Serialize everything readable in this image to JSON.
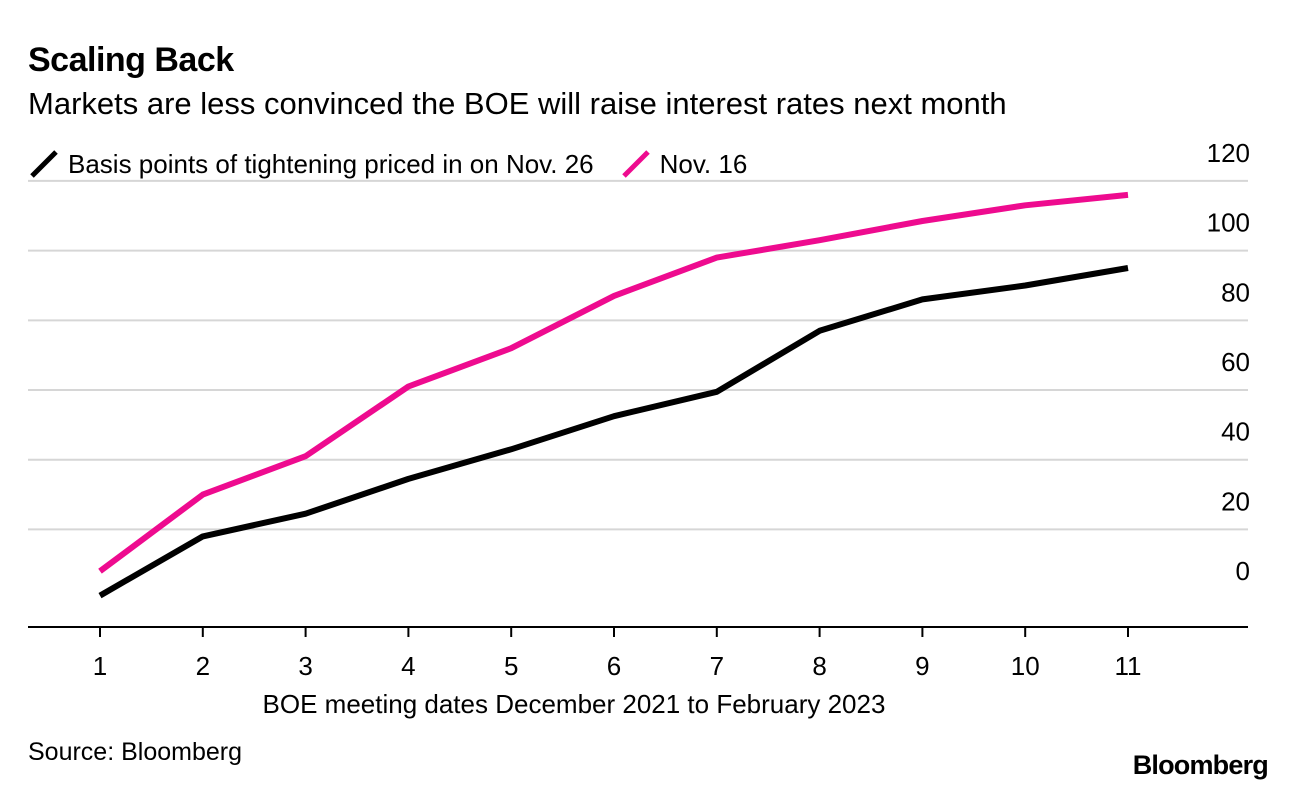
{
  "header": {
    "title": "Scaling Back",
    "subtitle": "Markets are less convinced the BOE will raise interest rates next month"
  },
  "footer": {
    "source": "Source: Bloomberg",
    "logo": "Bloomberg"
  },
  "colors": {
    "series_nov26": "#000000",
    "series_nov16": "#ee0b8f",
    "grid": "#d6d6d6",
    "axis": "#000000"
  },
  "chart_data": {
    "type": "line",
    "title": "Scaling Back",
    "subtitle": "Markets are less convinced the BOE will raise interest rates next month",
    "xlabel": "BOE meeting dates December 2021 to February 2023",
    "ylabel": "",
    "x": [
      1,
      2,
      3,
      4,
      5,
      6,
      7,
      8,
      9,
      10,
      11
    ],
    "x_tick_labels": [
      "1",
      "2",
      "3",
      "4",
      "5",
      "6",
      "7",
      "8",
      "9",
      "10",
      "11"
    ],
    "ylim": [
      -8,
      126
    ],
    "y_ticks": [
      0,
      20,
      40,
      60,
      80,
      100,
      120
    ],
    "y_tick_labels": [
      "0",
      "20",
      "40",
      "60",
      "80",
      "100",
      "120"
    ],
    "grid": true,
    "y_axis_side": "right",
    "legend_position": "top-left",
    "series": [
      {
        "name": "Basis points of tightening priced in on Nov. 26",
        "color": "#000000",
        "values": [
          1,
          18,
          24.5,
          34.5,
          43,
          52.5,
          59.5,
          77,
          86,
          90,
          95
        ]
      },
      {
        "name": "Nov. 16",
        "color": "#ee0b8f",
        "values": [
          8,
          30,
          41,
          61,
          72,
          87,
          98,
          103,
          108.5,
          113,
          116
        ]
      }
    ]
  }
}
